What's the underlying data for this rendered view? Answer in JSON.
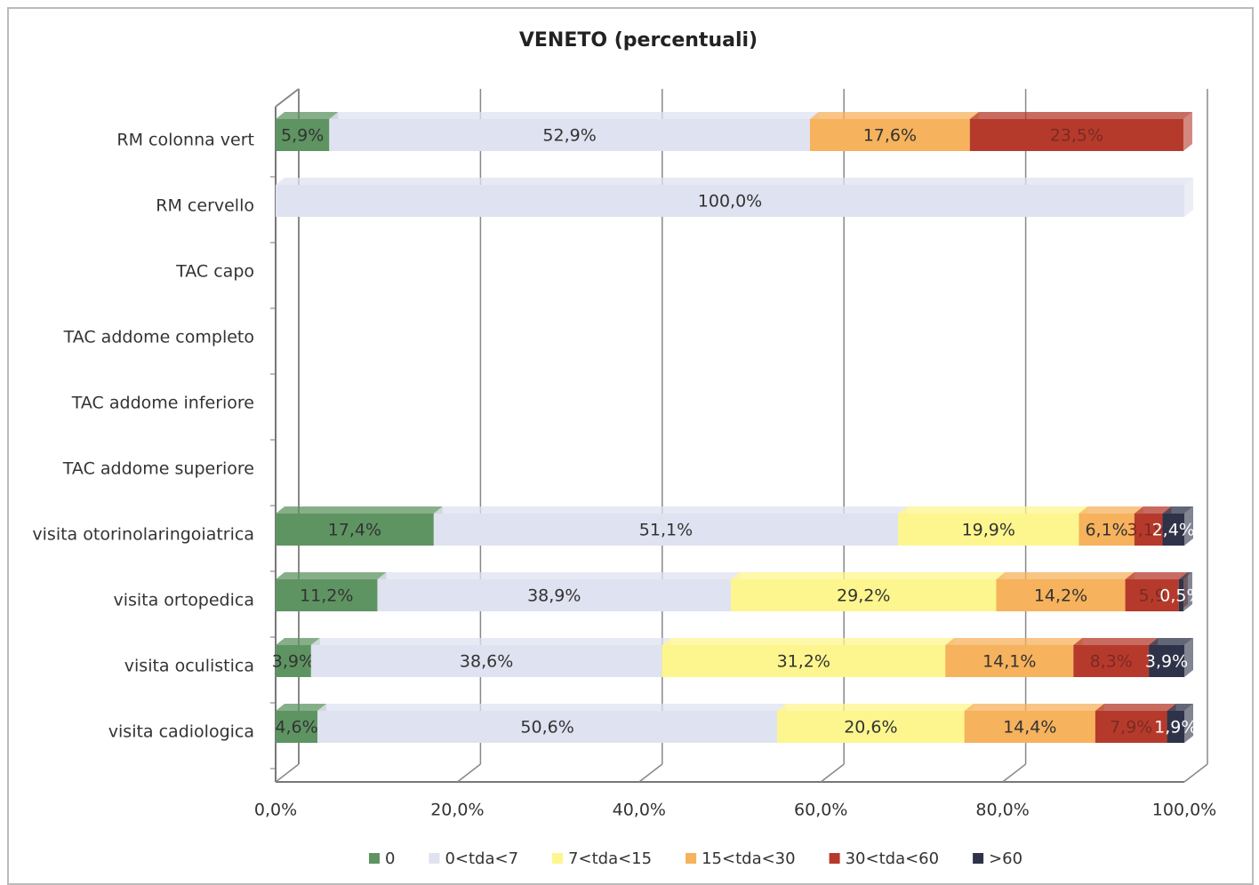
{
  "chart_data": {
    "type": "bar",
    "orientation": "horizontal",
    "stacked": true,
    "title": "VENETO (percentuali)",
    "categories": [
      "RM colonna vert",
      "RM cervello",
      "TAC capo",
      "TAC addome completo",
      "TAC addome inferiore",
      "TAC addome superiore",
      "visita otorinolaringoiatrica",
      "visita ortopedica",
      "visita oculistica",
      "visita cadiologica"
    ],
    "series": [
      {
        "name": "0",
        "color": "#5e9462",
        "values": [
          5.9,
          null,
          null,
          null,
          null,
          null,
          17.4,
          11.2,
          3.9,
          4.6
        ],
        "value_labels": [
          "5,9%",
          null,
          null,
          null,
          null,
          null,
          "17,4%",
          "11,2%",
          "3,9%",
          "4,6%"
        ]
      },
      {
        "name": "0<tda<7",
        "color": "#dfe2f0",
        "values": [
          52.9,
          100,
          null,
          null,
          null,
          null,
          51.1,
          38.9,
          38.6,
          50.6
        ],
        "value_labels": [
          "52,9%",
          "100,0%",
          null,
          null,
          null,
          null,
          "51,1%",
          "38,9%",
          "38,6%",
          "50,6%"
        ]
      },
      {
        "name": "7<tda<15",
        "color": "#fdf68e",
        "values": [
          null,
          null,
          null,
          null,
          null,
          null,
          19.9,
          29.2,
          31.2,
          20.6
        ],
        "value_labels": [
          null,
          null,
          null,
          null,
          null,
          null,
          "19,9%",
          "29,2%",
          "31,2%",
          "20,6%"
        ]
      },
      {
        "name": "15<tda<30",
        "color": "#f6b25c",
        "values": [
          17.6,
          null,
          null,
          null,
          null,
          null,
          6.1,
          14.2,
          14.1,
          14.4
        ],
        "value_labels": [
          "17,6%",
          null,
          null,
          null,
          null,
          null,
          "6,1%",
          "14,2%",
          "14,1%",
          "14,4%"
        ]
      },
      {
        "name": "30<tda<60",
        "color": "#b63a2c",
        "values": [
          23.5,
          null,
          null,
          null,
          null,
          null,
          3.1,
          5.9,
          8.3,
          7.9
        ],
        "value_labels": [
          "23,5%",
          null,
          null,
          null,
          null,
          null,
          "3,1%",
          "5,9",
          "8,3%",
          "7,9%"
        ]
      },
      {
        "name": ">60",
        "color": "#2f3349",
        "values": [
          null,
          null,
          null,
          null,
          null,
          null,
          2.4,
          0.5,
          3.9,
          1.9
        ],
        "value_labels": [
          null,
          null,
          null,
          null,
          null,
          null,
          "2,4%",
          "0,5%",
          "3,9%",
          "1,9%"
        ]
      }
    ],
    "xlim": [
      0,
      100
    ],
    "xticks": [
      {
        "value": 0,
        "label": "0,0%"
      },
      {
        "value": 20,
        "label": "20,0%"
      },
      {
        "value": 40,
        "label": "40,0%"
      },
      {
        "value": 60,
        "label": "60,0%"
      },
      {
        "value": 80,
        "label": "80,0%"
      },
      {
        "value": 100,
        "label": "100,0%"
      }
    ],
    "grid": true,
    "legend": "bottom"
  }
}
